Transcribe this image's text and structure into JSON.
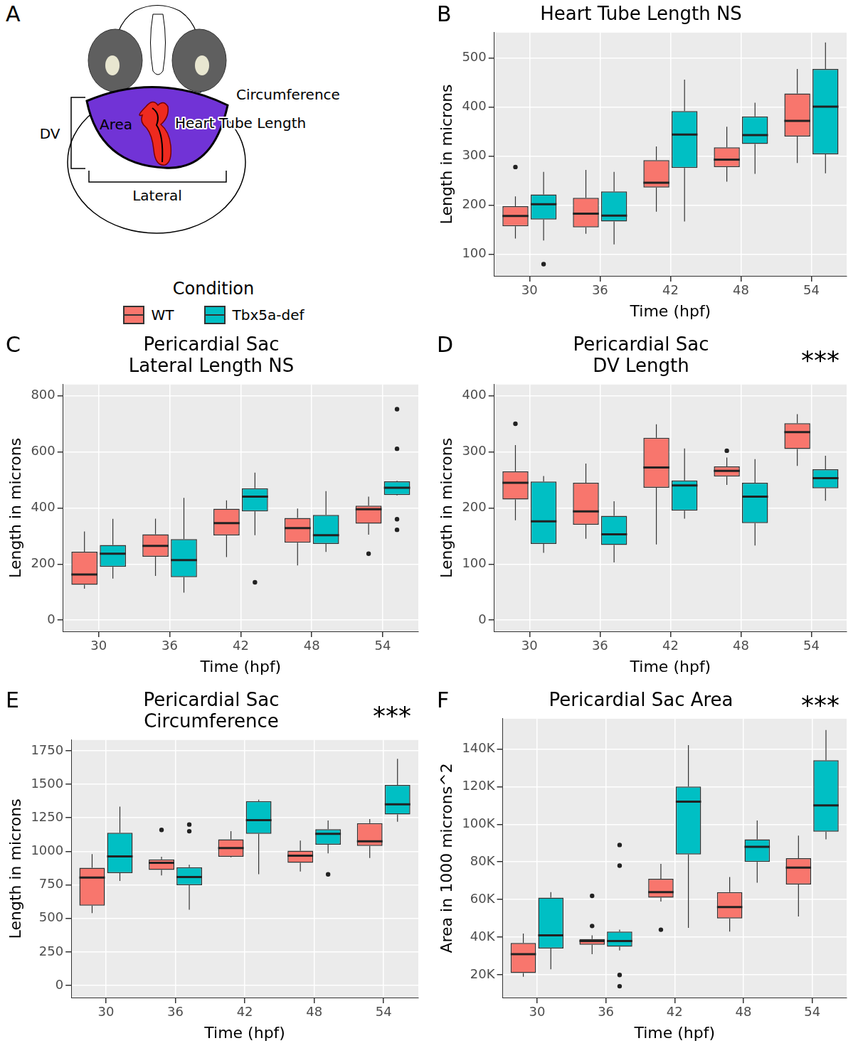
{
  "diagram": {
    "panel": "A",
    "labels": {
      "dv": "DV",
      "lateral": "Lateral",
      "area": "Area",
      "heart_tube_length": "Heart Tube Length",
      "circumference": "Circumference"
    }
  },
  "legend_title": "Condition",
  "chart_data": [
    {
      "type": "box",
      "panel": "B",
      "title": "Heart Tube Length NS",
      "x_label": "Time (hpf)",
      "y_label": "Length in microns",
      "categories": [
        "30",
        "36",
        "42",
        "48",
        "54"
      ],
      "ylim": [
        56,
        552
      ],
      "yticks": [
        100,
        200,
        300,
        400,
        500
      ],
      "grid": true,
      "series": [
        {
          "name": "WT",
          "color": "#F8766D",
          "values": [
            {
              "min": 132,
              "q1": 157,
              "median": 178,
              "q3": 198,
              "max": 218,
              "outliers": [
                278
              ]
            },
            {
              "min": 142,
              "q1": 155,
              "median": 183,
              "q3": 215,
              "max": 272,
              "outliers": []
            },
            {
              "min": 187,
              "q1": 236,
              "median": 246,
              "q3": 292,
              "max": 320,
              "outliers": []
            },
            {
              "min": 248,
              "q1": 278,
              "median": 293,
              "q3": 318,
              "max": 360,
              "outliers": []
            },
            {
              "min": 286,
              "q1": 340,
              "median": 372,
              "q3": 428,
              "max": 478,
              "outliers": []
            }
          ]
        },
        {
          "name": "Tbx5a-def",
          "color": "#00BFC4",
          "values": [
            {
              "min": 128,
              "q1": 171,
              "median": 202,
              "q3": 222,
              "max": 268,
              "outliers": [
                80
              ]
            },
            {
              "min": 120,
              "q1": 167,
              "median": 179,
              "q3": 228,
              "max": 268,
              "outliers": []
            },
            {
              "min": 167,
              "q1": 276,
              "median": 344,
              "q3": 392,
              "max": 456,
              "outliers": []
            },
            {
              "min": 264,
              "q1": 325,
              "median": 343,
              "q3": 381,
              "max": 409,
              "outliers": []
            },
            {
              "min": 265,
              "q1": 304,
              "median": 401,
              "q3": 478,
              "max": 532,
              "outliers": []
            }
          ]
        }
      ]
    },
    {
      "type": "box",
      "panel": "C",
      "title": [
        "Pericardial Sac",
        "Lateral Length NS"
      ],
      "x_label": "Time (hpf)",
      "y_label": "Length in microns",
      "categories": [
        "30",
        "36",
        "42",
        "48",
        "54"
      ],
      "ylim": [
        -40,
        840
      ],
      "yticks": [
        0,
        200,
        400,
        600,
        800
      ],
      "grid": true,
      "series": [
        {
          "name": "WT",
          "color": "#F8766D",
          "values": [
            {
              "min": 112,
              "q1": 126,
              "median": 163,
              "q3": 244,
              "max": 316,
              "outliers": []
            },
            {
              "min": 158,
              "q1": 226,
              "median": 265,
              "q3": 306,
              "max": 362,
              "outliers": []
            },
            {
              "min": 225,
              "q1": 302,
              "median": 346,
              "q3": 397,
              "max": 427,
              "outliers": []
            },
            {
              "min": 195,
              "q1": 276,
              "median": 328,
              "q3": 364,
              "max": 398,
              "outliers": []
            },
            {
              "min": 305,
              "q1": 344,
              "median": 395,
              "q3": 408,
              "max": 440,
              "outliers": [
                237
              ]
            }
          ]
        },
        {
          "name": "Tbx5a-def",
          "color": "#00BFC4",
          "values": [
            {
              "min": 148,
              "q1": 190,
              "median": 237,
              "q3": 268,
              "max": 361,
              "outliers": []
            },
            {
              "min": 98,
              "q1": 153,
              "median": 214,
              "q3": 289,
              "max": 436,
              "outliers": []
            },
            {
              "min": 303,
              "q1": 388,
              "median": 440,
              "q3": 470,
              "max": 526,
              "outliers": [
                135
              ]
            },
            {
              "min": 243,
              "q1": 272,
              "median": 303,
              "q3": 375,
              "max": 460,
              "outliers": []
            },
            {
              "min": 444,
              "q1": 446,
              "median": 472,
              "q3": 495,
              "max": 497,
              "outliers": [
                752,
                611,
                360,
                322
              ]
            }
          ]
        }
      ]
    },
    {
      "type": "box",
      "panel": "D",
      "title": [
        "Pericardial Sac",
        "DV Length"
      ],
      "annotation": "***",
      "x_label": "Time (hpf)",
      "y_label": "Length in microns",
      "categories": [
        "30",
        "36",
        "42",
        "48",
        "54"
      ],
      "ylim": [
        -20,
        420
      ],
      "yticks": [
        0,
        100,
        200,
        300,
        400
      ],
      "grid": true,
      "series": [
        {
          "name": "WT",
          "color": "#F8766D",
          "values": [
            {
              "min": 178,
              "q1": 215,
              "median": 245,
              "q3": 265,
              "max": 312,
              "outliers": [
                350
              ]
            },
            {
              "min": 145,
              "q1": 170,
              "median": 194,
              "q3": 245,
              "max": 279,
              "outliers": []
            },
            {
              "min": 135,
              "q1": 236,
              "median": 272,
              "q3": 325,
              "max": 349,
              "outliers": []
            },
            {
              "min": 241,
              "q1": 256,
              "median": 266,
              "q3": 274,
              "max": 290,
              "outliers": [
                302
              ]
            },
            {
              "min": 275,
              "q1": 305,
              "median": 335,
              "q3": 351,
              "max": 367,
              "outliers": []
            }
          ]
        },
        {
          "name": "Tbx5a-def",
          "color": "#00BFC4",
          "values": [
            {
              "min": 120,
              "q1": 136,
              "median": 176,
              "q3": 247,
              "max": 257,
              "outliers": []
            },
            {
              "min": 103,
              "q1": 134,
              "median": 153,
              "q3": 186,
              "max": 212,
              "outliers": []
            },
            {
              "min": 181,
              "q1": 195,
              "median": 240,
              "q3": 249,
              "max": 306,
              "outliers": []
            },
            {
              "min": 133,
              "q1": 173,
              "median": 220,
              "q3": 245,
              "max": 287,
              "outliers": []
            },
            {
              "min": 213,
              "q1": 235,
              "median": 253,
              "q3": 269,
              "max": 293,
              "outliers": []
            }
          ]
        }
      ]
    },
    {
      "type": "box",
      "panel": "E",
      "title": [
        "Pericardial Sac",
        "Circumference"
      ],
      "annotation": "***",
      "x_label": "Time (hpf)",
      "y_label": "Length in microns",
      "categories": [
        "30",
        "36",
        "42",
        "48",
        "54"
      ],
      "ylim": [
        -90,
        1830
      ],
      "yticks": [
        0,
        250,
        500,
        750,
        1000,
        1250,
        1500,
        1750
      ],
      "grid": true,
      "series": [
        {
          "name": "WT",
          "color": "#F8766D",
          "values": [
            {
              "min": 540,
              "q1": 595,
              "median": 805,
              "q3": 878,
              "max": 980,
              "outliers": []
            },
            {
              "min": 820,
              "q1": 862,
              "median": 915,
              "q3": 940,
              "max": 960,
              "outliers": [
                1160
              ]
            },
            {
              "min": 955,
              "q1": 960,
              "median": 1025,
              "q3": 1090,
              "max": 1150,
              "outliers": []
            },
            {
              "min": 850,
              "q1": 915,
              "median": 968,
              "q3": 1005,
              "max": 1080,
              "outliers": []
            },
            {
              "min": 950,
              "q1": 1040,
              "median": 1075,
              "q3": 1210,
              "max": 1240,
              "outliers": []
            }
          ]
        },
        {
          "name": "Tbx5a-def",
          "color": "#00BFC4",
          "values": [
            {
              "min": 780,
              "q1": 838,
              "median": 962,
              "q3": 1138,
              "max": 1333,
              "outliers": []
            },
            {
              "min": 565,
              "q1": 748,
              "median": 808,
              "q3": 882,
              "max": 900,
              "outliers": [
                1200,
                1150
              ]
            },
            {
              "min": 830,
              "q1": 1130,
              "median": 1232,
              "q3": 1375,
              "max": 1385,
              "outliers": []
            },
            {
              "min": 985,
              "q1": 1050,
              "median": 1130,
              "q3": 1165,
              "max": 1230,
              "outliers": [
                828
              ]
            },
            {
              "min": 1220,
              "q1": 1275,
              "median": 1350,
              "q3": 1495,
              "max": 1690,
              "outliers": []
            }
          ]
        }
      ]
    },
    {
      "type": "box",
      "panel": "F",
      "title": "Pericardial Sac Area",
      "annotation": "***",
      "x_label": "Time (hpf)",
      "y_label": "Area in 1000 microns^2",
      "categories": [
        "30",
        "36",
        "42",
        "48",
        "54"
      ],
      "ylim": [
        8000,
        156000
      ],
      "yticks": [
        {
          "value": 20000,
          "label": "20K"
        },
        {
          "value": 40000,
          "label": "40K"
        },
        {
          "value": 60000,
          "label": "60K"
        },
        {
          "value": 80000,
          "label": "80K"
        },
        {
          "value": 100000,
          "label": "100K"
        },
        {
          "value": 120000,
          "label": "120K"
        },
        {
          "value": 140000,
          "label": "140K"
        }
      ],
      "grid": true,
      "series": [
        {
          "name": "WT",
          "color": "#F8766D",
          "values": [
            {
              "min": 19000,
              "q1": 21000,
              "median": 31000,
              "q3": 37000,
              "max": 42000,
              "outliers": []
            },
            {
              "min": 31000,
              "q1": 36000,
              "median": 38000,
              "q3": 39000,
              "max": 41000,
              "outliers": [
                62000,
                46000
              ]
            },
            {
              "min": 59000,
              "q1": 61000,
              "median": 64000,
              "q3": 71000,
              "max": 79000,
              "outliers": [
                44000
              ]
            },
            {
              "min": 43000,
              "q1": 50000,
              "median": 56000,
              "q3": 64000,
              "max": 72000,
              "outliers": []
            },
            {
              "min": 51000,
              "q1": 68000,
              "median": 77000,
              "q3": 82000,
              "max": 94000,
              "outliers": []
            }
          ]
        },
        {
          "name": "Tbx5a-def",
          "color": "#00BFC4",
          "values": [
            {
              "min": 23000,
              "q1": 34000,
              "median": 41000,
              "q3": 61000,
              "max": 64000,
              "outliers": []
            },
            {
              "min": 33000,
              "q1": 35000,
              "median": 38000,
              "q3": 43000,
              "max": 44000,
              "outliers": [
                89000,
                78000,
                20000,
                14000
              ]
            },
            {
              "min": 45000,
              "q1": 84000,
              "median": 112000,
              "q3": 120000,
              "max": 142000,
              "outliers": []
            },
            {
              "min": 69000,
              "q1": 80000,
              "median": 88000,
              "q3": 92000,
              "max": 102000,
              "outliers": []
            },
            {
              "min": 92000,
              "q1": 96000,
              "median": 110000,
              "q3": 134000,
              "max": 150000,
              "outliers": []
            }
          ]
        }
      ]
    }
  ]
}
